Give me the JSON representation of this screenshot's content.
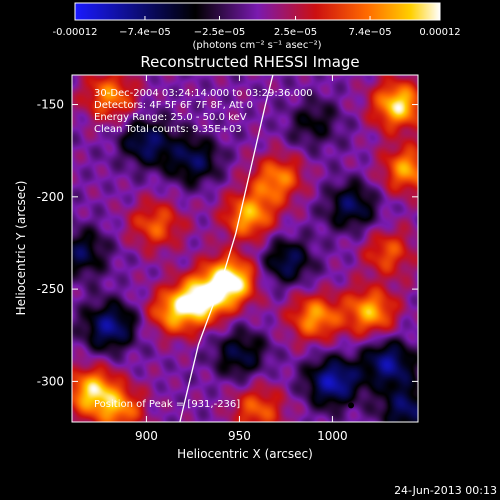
{
  "chart_data": {
    "type": "heatmap",
    "title": "Reconstructed RHESSI Image",
    "xlabel": "Heliocentric X (arcsec)",
    "ylabel": "Heliocentric Y (arcsec)",
    "xlim": [
      860,
      1046
    ],
    "ylim": [
      -322,
      -134
    ],
    "x_ticks": [
      900,
      950,
      1000
    ],
    "y_ticks": [
      -150,
      -200,
      -250,
      -300
    ],
    "colorbar": {
      "label": "(photons cm⁻² s⁻¹ asec⁻²)",
      "range": [
        -0.00012,
        0.00012
      ],
      "tick_values": [
        -0.00012,
        -7.4e-05,
        -2.5e-05,
        2.5e-05,
        7.4e-05,
        0.00012
      ],
      "tick_labels": [
        "-0.00012",
        "−7.4e−05",
        "−2.5e−05",
        "2.5e−05",
        "7.4e−05",
        "0.00012"
      ],
      "colormap": [
        "#1a1aff",
        "#000000",
        "#7a1ab0",
        "#cc1010",
        "#ff6a00",
        "#ffd000",
        "#ffffff"
      ]
    },
    "annotations": [
      "30-Dec-2004 03:24:14.000 to 03:29:36.000",
      "Detectors: 4F 5F 6F 7F 8F, Att 0",
      "Energy Range: 25.0 - 50.0 keV",
      "Clean     Total counts: 9.35E+03",
      "Position of Peak = [931,-236]"
    ],
    "peak": [
      931,
      -236
    ],
    "limb_curve": [
      [
        918,
        -322
      ],
      [
        928,
        -280
      ],
      [
        939,
        -250
      ],
      [
        948,
        -220
      ],
      [
        956,
        -185
      ],
      [
        964,
        -150
      ],
      [
        968,
        -134
      ]
    ],
    "blobs": [
      {
        "x": 945,
        "y": -245,
        "v": 1.0
      },
      {
        "x": 930,
        "y": -255,
        "v": 0.85
      },
      {
        "x": 915,
        "y": -262,
        "v": 0.7
      },
      {
        "x": 955,
        "y": -210,
        "v": 0.75
      },
      {
        "x": 905,
        "y": -215,
        "v": 0.55
      },
      {
        "x": 880,
        "y": -145,
        "v": 0.65
      },
      {
        "x": 1035,
        "y": -150,
        "v": 0.9
      },
      {
        "x": 1040,
        "y": -185,
        "v": 0.7
      },
      {
        "x": 970,
        "y": -190,
        "v": 0.65
      },
      {
        "x": 990,
        "y": -265,
        "v": 0.7
      },
      {
        "x": 1020,
        "y": -262,
        "v": 0.75
      },
      {
        "x": 870,
        "y": -305,
        "v": 0.8
      },
      {
        "x": 885,
        "y": -315,
        "v": 0.6
      },
      {
        "x": 960,
        "y": -315,
        "v": 0.55
      },
      {
        "x": 1030,
        "y": -230,
        "v": 0.5
      },
      {
        "x": 900,
        "y": -170,
        "v": -0.6
      },
      {
        "x": 925,
        "y": -180,
        "v": -0.55
      },
      {
        "x": 880,
        "y": -270,
        "v": -0.7
      },
      {
        "x": 1010,
        "y": -205,
        "v": -0.55
      },
      {
        "x": 1000,
        "y": -300,
        "v": -0.8
      },
      {
        "x": 1030,
        "y": -290,
        "v": -0.7
      },
      {
        "x": 950,
        "y": -285,
        "v": -0.5
      },
      {
        "x": 975,
        "y": -235,
        "v": -0.55
      },
      {
        "x": 1040,
        "y": -315,
        "v": -0.6
      },
      {
        "x": 865,
        "y": -230,
        "v": -0.5
      },
      {
        "x": 990,
        "y": -160,
        "v": -0.35
      }
    ]
  },
  "footer": {
    "date": "24-Jun-2013 00:13"
  }
}
